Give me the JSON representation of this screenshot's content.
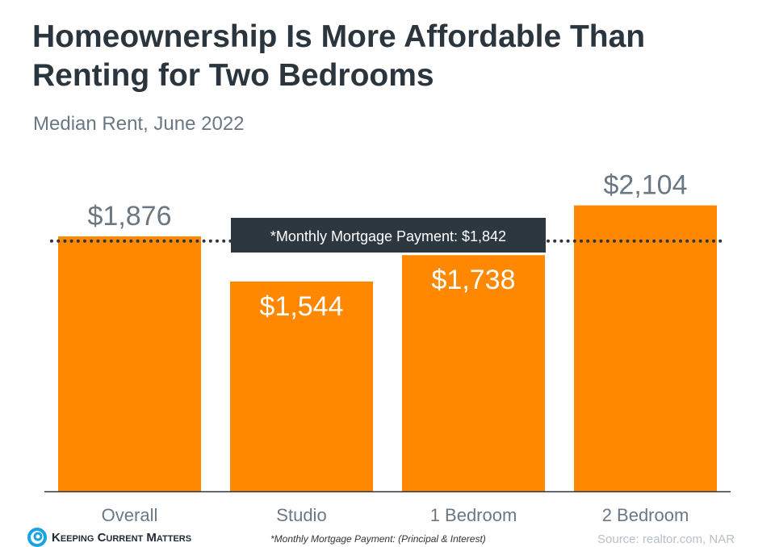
{
  "title_line1": "Homeownership Is More Affordable Than",
  "title_line2": "Renting for Two Bedrooms",
  "subtitle": "Median Rent, June 2022",
  "chart_data": {
    "type": "bar",
    "categories": [
      "Overall",
      "Studio",
      "1 Bedroom",
      "2 Bedroom"
    ],
    "values": [
      1876,
      1544,
      1738,
      2104
    ],
    "data_labels": [
      "$1,876",
      "$1,544",
      "$1,738",
      "$2,104"
    ],
    "ylim": [
      0,
      2104
    ],
    "bar_color": "#ff8800",
    "reference_line": {
      "value": 1842,
      "label": "*Monthly  Mortgage  Payment: $1,842",
      "style": "dotted"
    }
  },
  "footnote": "*Monthly  Mortgage  Payment: (Principal & Interest)",
  "source": "Source: realtor.com, NAR",
  "logo_text": "Keeping Current Matters"
}
